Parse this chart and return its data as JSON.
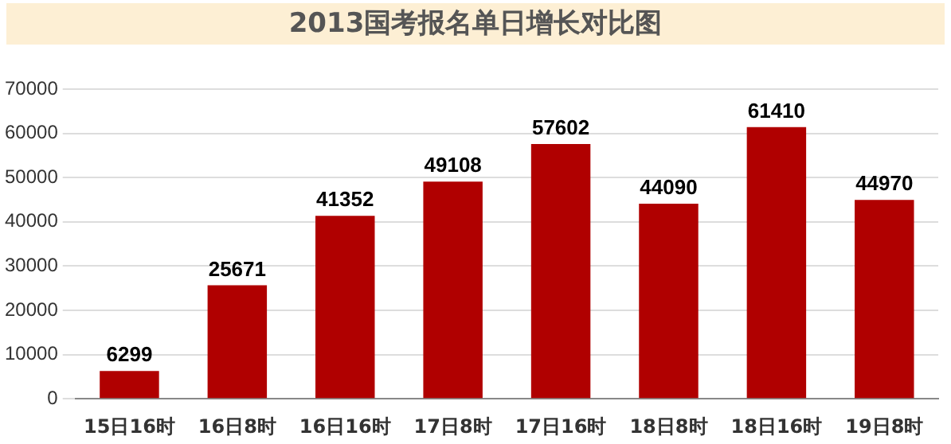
{
  "chart_data": {
    "type": "bar",
    "title": "2013国考报名单日增长对比图",
    "categories": [
      "15日16时",
      "16日8时",
      "16日16时",
      "17日8时",
      "17日16时",
      "18日8时",
      "18日16时",
      "19日8时"
    ],
    "values": [
      6299,
      25671,
      41352,
      49108,
      57602,
      44090,
      61410,
      44970
    ],
    "color": "#b00000",
    "ylim": [
      0,
      70000
    ],
    "yticks": [
      0,
      10000,
      20000,
      30000,
      40000,
      50000,
      60000,
      70000
    ],
    "grid": "y",
    "data_labels": true
  }
}
